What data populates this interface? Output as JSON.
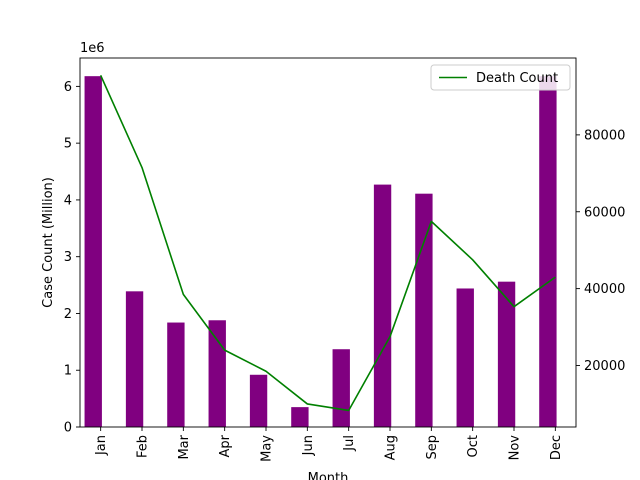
{
  "chart_data": {
    "type": "bar",
    "categories": [
      "Jan",
      "Feb",
      "Mar",
      "Apr",
      "May",
      "Jun",
      "Jul",
      "Aug",
      "Sep",
      "Oct",
      "Nov",
      "Dec"
    ],
    "title": "",
    "xlabel": "Month",
    "ylabel": "Case Count (Million)",
    "y2label": "Death Count",
    "y_offset_text": "1e6",
    "ylim": [
      0,
      6500000
    ],
    "y2lim": [
      4000,
      100000
    ],
    "yticks": [
      0,
      1000000,
      2000000,
      3000000,
      4000000,
      5000000,
      6000000
    ],
    "ytick_labels": [
      "0",
      "1",
      "2",
      "3",
      "4",
      "5",
      "6"
    ],
    "y2ticks": [
      20000,
      40000,
      60000,
      80000
    ],
    "y2tick_labels": [
      "20000",
      "40000",
      "60000",
      "80000"
    ],
    "legend_position": "top-right",
    "grid": false,
    "series": [
      {
        "name": "",
        "type": "bar",
        "axis": "left",
        "color": "#800080",
        "values": [
          6180000,
          2390000,
          1840000,
          1880000,
          920000,
          350000,
          1370000,
          4270000,
          4110000,
          2440000,
          2560000,
          6180000
        ]
      },
      {
        "name": "Death Count",
        "type": "line",
        "axis": "right",
        "color": "#008000",
        "values": [
          95500,
          71500,
          38500,
          24000,
          18500,
          10000,
          8300,
          27500,
          57500,
          47500,
          35300,
          43000
        ]
      }
    ]
  }
}
